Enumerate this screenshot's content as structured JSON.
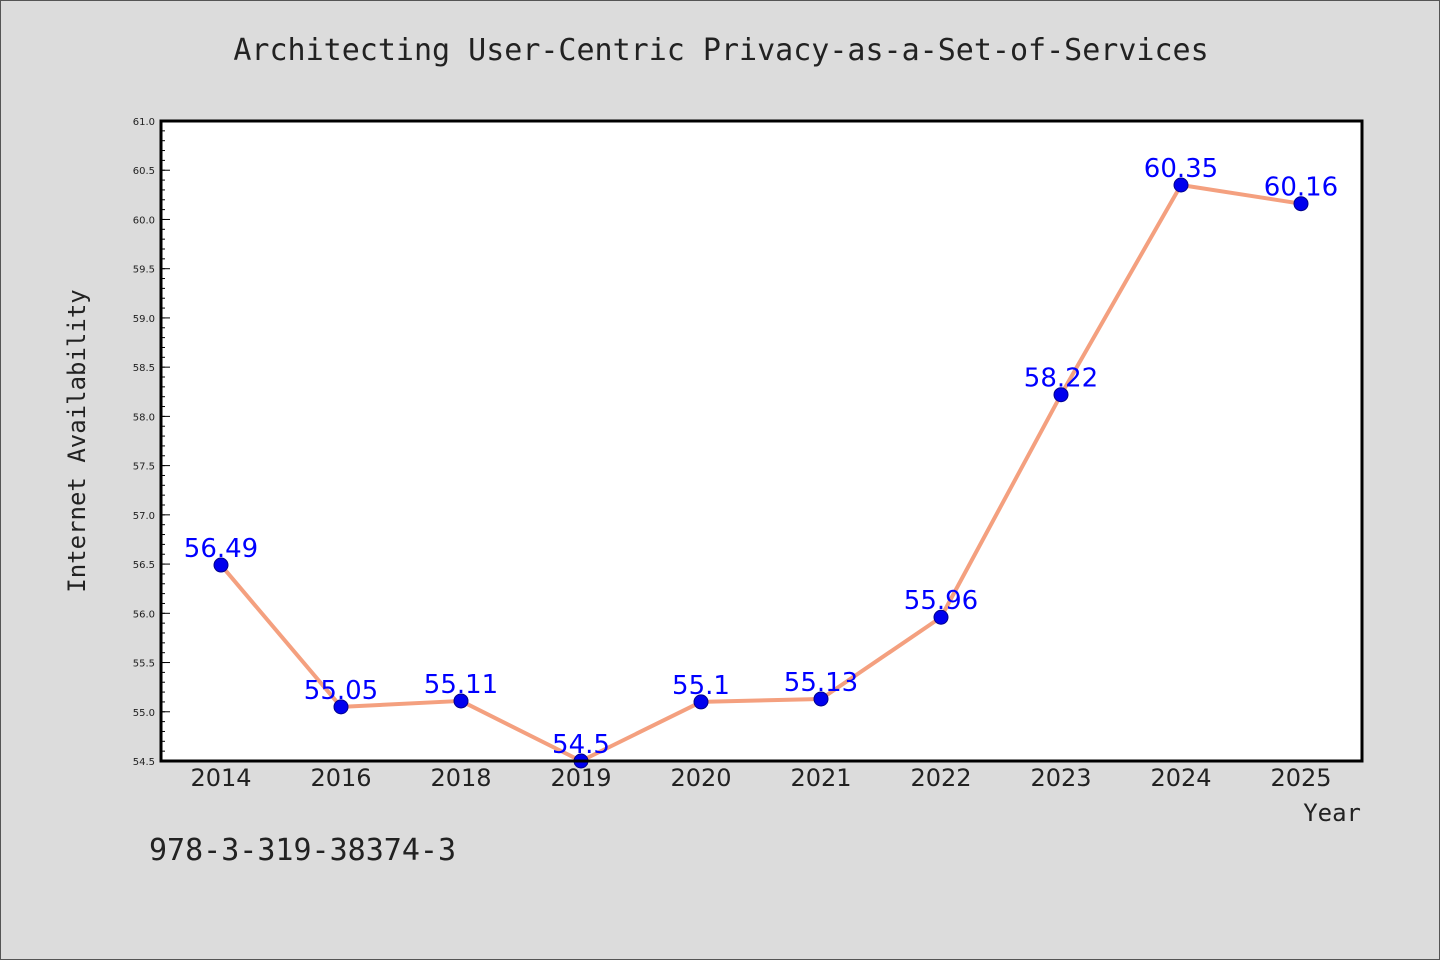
{
  "chart_data": {
    "type": "line",
    "title": "Architecting User-Centric Privacy-as-a-Set-of-Services",
    "xlabel": "Year",
    "ylabel": "Internet Availability",
    "categories": [
      "2014",
      "2016",
      "2018",
      "2019",
      "2020",
      "2021",
      "2022",
      "2023",
      "2024",
      "2025"
    ],
    "series": [
      {
        "values": [
          56.49,
          55.05,
          55.11,
          54.5,
          55.1,
          55.13,
          55.96,
          58.22,
          60.35,
          60.16
        ],
        "labels": [
          "56.49",
          "55.05",
          "55.11",
          "54.5",
          "55.1",
          "55.13",
          "55.96",
          "58.22",
          "60.35",
          "60.16"
        ],
        "line_color": "#f4a07f",
        "marker_color": "#0000ee"
      }
    ],
    "ylim": [
      54.5,
      61.0
    ],
    "yticks": [
      "54.5",
      "55.0",
      "55.5",
      "56.0",
      "56.5",
      "57.0",
      "57.5",
      "58.0",
      "58.5",
      "59.0",
      "59.5",
      "60.0",
      "60.5",
      "61.0"
    ],
    "grid": false,
    "legend": "none"
  },
  "annotations": {
    "isbn": "978-3-319-38374-3"
  }
}
